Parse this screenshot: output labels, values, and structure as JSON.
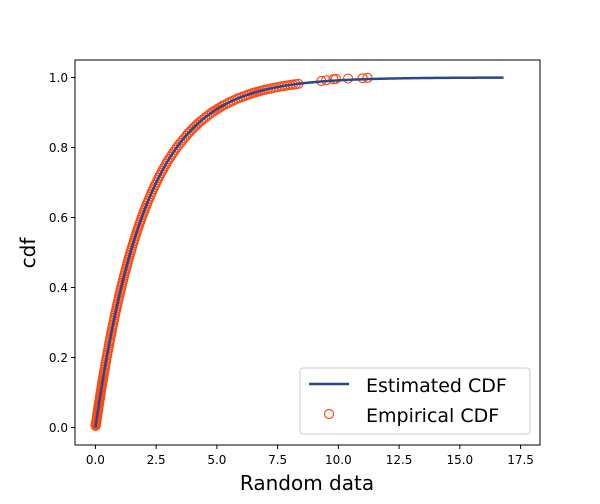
{
  "chart_data": {
    "type": "line",
    "xlabel": "Random data",
    "ylabel": "cdf",
    "xlim": [
      -0.84,
      18.3
    ],
    "ylim": [
      -0.05,
      1.05
    ],
    "xticks": [
      "0.0",
      "2.5",
      "5.0",
      "7.5",
      "10.0",
      "12.5",
      "15.0",
      "17.5"
    ],
    "xtick_values": [
      0,
      2.5,
      5,
      7.5,
      10,
      12.5,
      15,
      17.5
    ],
    "yticks": [
      "0.0",
      "0.2",
      "0.4",
      "0.6",
      "0.8",
      "1.0"
    ],
    "ytick_values": [
      0,
      0.2,
      0.4,
      0.6,
      0.8,
      1.0
    ],
    "grid": false,
    "legend_position": "lower-right",
    "series": [
      {
        "name": "Estimated CDF",
        "kind": "line",
        "color": "#2b4591",
        "function": "exponential",
        "scale": 2.08,
        "x_range": [
          0,
          16.8
        ]
      },
      {
        "name": "Empirical CDF",
        "kind": "scatter",
        "marker": "hollow-circle",
        "color": "#ff4a10",
        "points": [
          [
            0.01,
            0.005
          ],
          [
            0.042,
            0.02
          ],
          [
            0.085,
            0.04
          ],
          [
            0.129,
            0.06
          ],
          [
            0.173,
            0.08
          ],
          [
            0.219,
            0.1
          ],
          [
            0.29,
            0.13
          ],
          [
            0.363,
            0.16
          ],
          [
            0.464,
            0.2
          ],
          [
            0.571,
            0.24
          ],
          [
            0.683,
            0.28
          ],
          [
            0.802,
            0.32
          ],
          [
            0.928,
            0.36
          ],
          [
            1.062,
            0.4
          ],
          [
            1.206,
            0.44
          ],
          [
            1.36,
            0.48
          ],
          [
            1.527,
            0.52
          ],
          [
            1.708,
            0.56
          ],
          [
            1.906,
            0.6
          ],
          [
            2.125,
            0.64
          ],
          [
            2.37,
            0.68
          ],
          [
            2.648,
            0.72
          ],
          [
            2.968,
            0.76
          ],
          [
            3.348,
            0.8
          ],
          [
            3.812,
            0.84
          ],
          [
            4.244,
            0.87
          ],
          [
            4.789,
            0.9
          ],
          [
            5.253,
            0.92
          ],
          [
            5.852,
            0.94
          ],
          [
            6.45,
            0.955
          ],
          [
            6.973,
            0.965
          ],
          [
            7.673,
            0.975
          ],
          [
            8.356,
            0.982
          ],
          [
            9.3,
            0.99
          ],
          [
            9.5,
            0.992
          ],
          [
            9.8,
            0.995
          ],
          [
            9.9,
            0.996
          ],
          [
            10.4,
            0.997
          ],
          [
            11.0,
            0.998
          ],
          [
            11.2,
            0.999
          ]
        ]
      }
    ]
  }
}
